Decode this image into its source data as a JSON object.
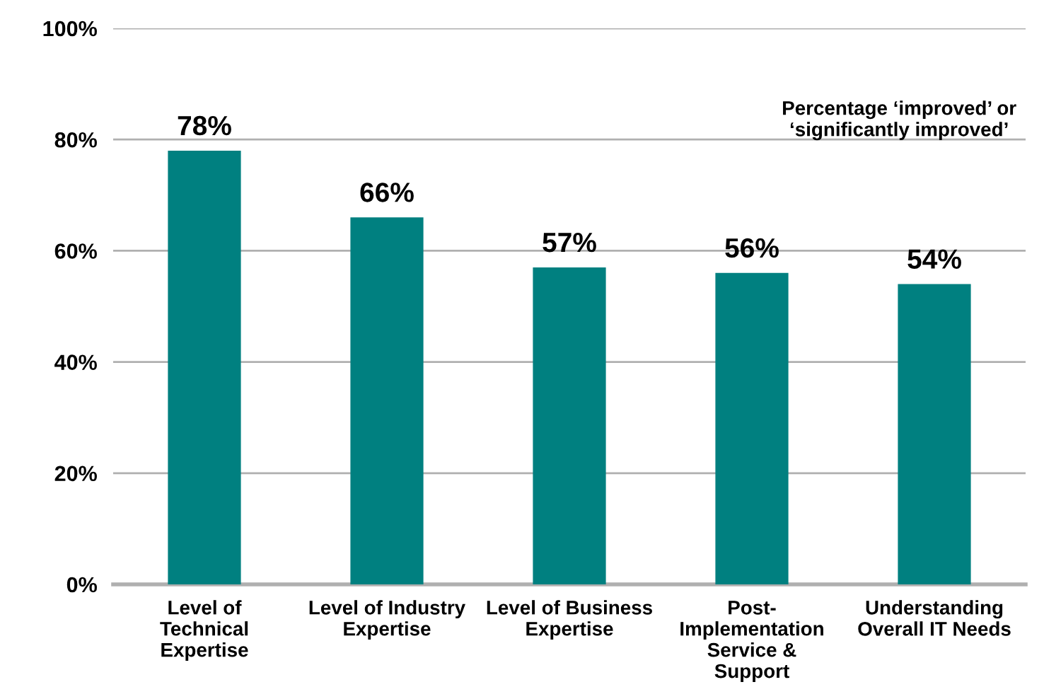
{
  "chart_data": {
    "type": "bar",
    "categories": [
      "Level of\nTechnical\nExpertise",
      "Level of Industry\nExpertise",
      "Level of Business\nExpertise",
      "Post-\nImplementation\nService &\nSupport",
      "Understanding\nOverall IT Needs"
    ],
    "values": [
      78,
      66,
      57,
      56,
      54
    ],
    "color": "#008080",
    "ylim": [
      0,
      100
    ],
    "yticks": [
      {
        "value": 0,
        "label": "0%"
      },
      {
        "value": 20,
        "label": "20%"
      },
      {
        "value": 40,
        "label": "40%"
      },
      {
        "value": 60,
        "label": "60%"
      },
      {
        "value": 80,
        "label": "80%"
      },
      {
        "value": 100,
        "label": "100%"
      }
    ],
    "value_labels": [
      "78%",
      "66%",
      "57%",
      "56%",
      "54%"
    ],
    "annotations": [
      "Percentage ‘improved’ or\n‘significantly improved’"
    ],
    "grid": "y",
    "legend": false
  }
}
